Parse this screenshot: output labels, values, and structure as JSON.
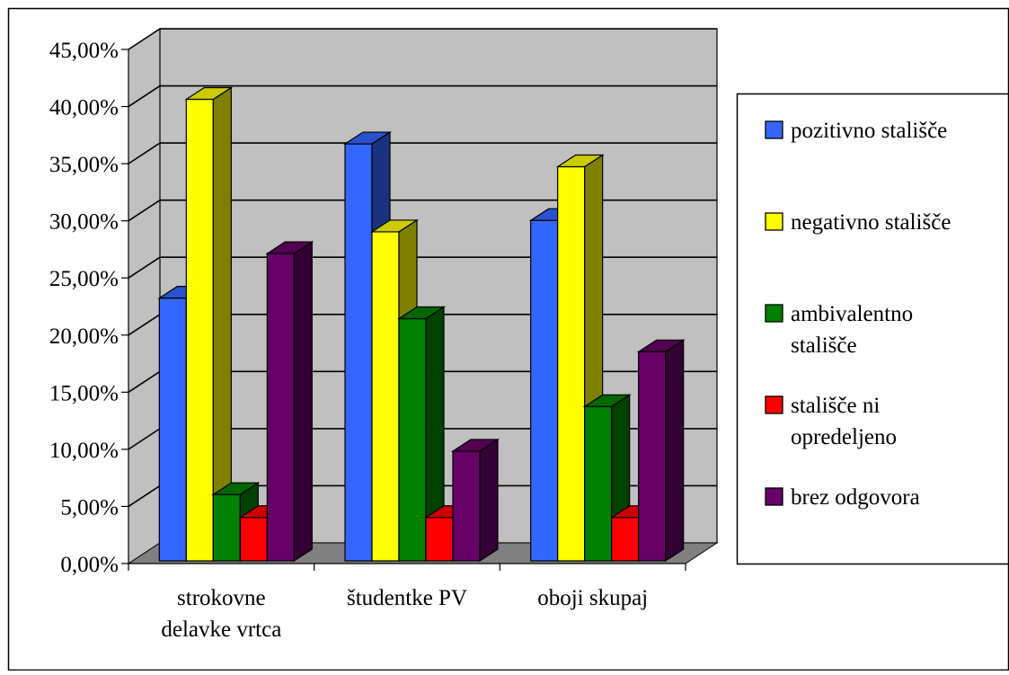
{
  "chart_data": {
    "type": "bar",
    "categories": [
      [
        "strokovne",
        "delavke vrtca"
      ],
      [
        "študentke PV"
      ],
      [
        "oboji skupaj"
      ]
    ],
    "series": [
      {
        "name": "pozitivno stališče",
        "legend_lines": [
          "pozitivno stališče"
        ],
        "color": "#3366FF",
        "values": [
          23.0,
          36.5,
          29.8
        ]
      },
      {
        "name": "negativno stališče",
        "legend_lines": [
          "negativno stališče"
        ],
        "color": "#FFFF00",
        "values": [
          40.4,
          28.8,
          34.5
        ]
      },
      {
        "name": "ambivalentno stališče",
        "legend_lines": [
          "ambivalentno",
          "stališče"
        ],
        "color": "#008000",
        "values": [
          5.8,
          21.2,
          13.5
        ]
      },
      {
        "name": "stališče ni opredeljeno",
        "legend_lines": [
          "stališče ni",
          "opredeljeno"
        ],
        "color": "#FF0000",
        "values": [
          3.8,
          3.8,
          3.8
        ]
      },
      {
        "name": "brez odgovora",
        "legend_lines": [
          "brez odgovora"
        ],
        "color": "#660066",
        "values": [
          26.9,
          9.6,
          18.3
        ]
      }
    ],
    "ylim": [
      0,
      45
    ],
    "yticks": [
      "0,00%",
      "5,00%",
      "10,00%",
      "15,00%",
      "20,00%",
      "25,00%",
      "30,00%",
      "35,00%",
      "40,00%",
      "45,00%"
    ],
    "grid": true,
    "legend_position": "right",
    "title": "",
    "xlabel": "",
    "ylabel": "",
    "colors": {
      "wall": "#C0C0C0",
      "floor": "#808080",
      "grid": "#000000"
    }
  }
}
